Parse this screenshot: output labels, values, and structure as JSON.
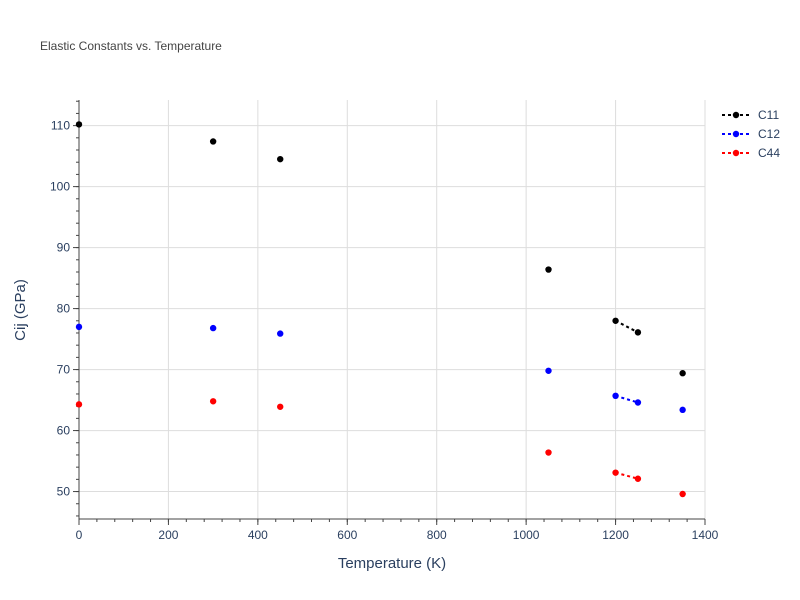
{
  "chart_data": {
    "type": "scatter",
    "title": "Elastic Constants vs. Temperature",
    "xlabel": "Temperature (K)",
    "ylabel": "Cij (GPa)",
    "xlim": [
      0,
      1400
    ],
    "ylim": [
      45.5,
      114.2
    ],
    "xticks": [
      0,
      200,
      400,
      600,
      800,
      1000,
      1200,
      1400
    ],
    "yticks": [
      50,
      60,
      70,
      80,
      90,
      100,
      110
    ],
    "grid": true,
    "legend_position": "top-right",
    "series": [
      {
        "name": "C11",
        "color": "#000000",
        "points": [
          [
            0,
            110.2
          ],
          [
            300,
            107.4
          ],
          [
            450,
            104.5
          ],
          [
            1050,
            86.4
          ],
          [
            1200,
            78.0
          ],
          [
            1250,
            76.1
          ],
          [
            1350,
            69.4
          ]
        ],
        "connected": [
          [
            1200,
            78.0
          ],
          [
            1250,
            76.1
          ]
        ]
      },
      {
        "name": "C12",
        "color": "#0000ff",
        "points": [
          [
            0,
            77.0
          ],
          [
            300,
            76.8
          ],
          [
            450,
            75.9
          ],
          [
            1050,
            69.8
          ],
          [
            1200,
            65.7
          ],
          [
            1250,
            64.6
          ],
          [
            1350,
            63.4
          ]
        ],
        "connected": [
          [
            1200,
            65.7
          ],
          [
            1250,
            64.6
          ]
        ]
      },
      {
        "name": "C44",
        "color": "#ff0000",
        "points": [
          [
            0,
            64.3
          ],
          [
            300,
            64.8
          ],
          [
            450,
            63.9
          ],
          [
            1050,
            56.4
          ],
          [
            1200,
            53.1
          ],
          [
            1250,
            52.1
          ],
          [
            1350,
            49.6
          ]
        ],
        "connected": [
          [
            1200,
            53.1
          ],
          [
            1250,
            52.1
          ]
        ]
      }
    ]
  }
}
